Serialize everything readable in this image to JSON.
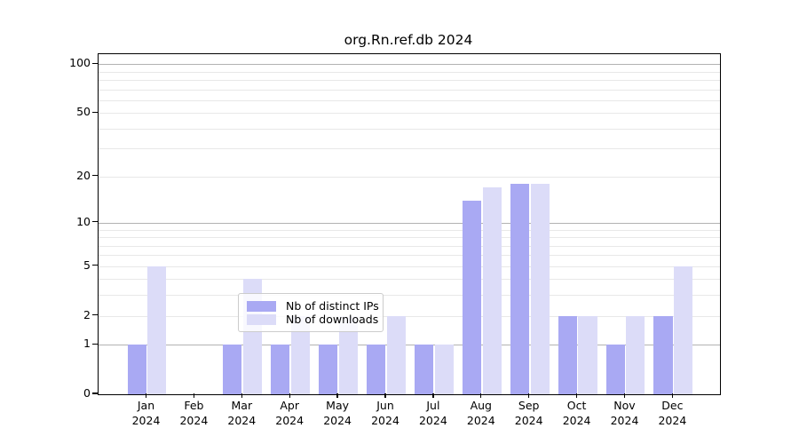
{
  "chart_data": {
    "type": "bar",
    "title": "org.Rn.ref.db 2024",
    "categories": [
      "Jan",
      "Feb",
      "Mar",
      "Apr",
      "May",
      "Jun",
      "Jul",
      "Aug",
      "Sep",
      "Oct",
      "Nov",
      "Dec"
    ],
    "category_year": "2024",
    "series": [
      {
        "name": "Nb of distinct IPs",
        "color": "#a9a9f3",
        "values": [
          1,
          0,
          1,
          1,
          1,
          1,
          1,
          14,
          18,
          2,
          1,
          2
        ]
      },
      {
        "name": "Nb of downloads",
        "color": "#dcdcf8",
        "values": [
          5,
          0,
          4,
          2,
          2,
          2,
          1,
          17,
          18,
          2,
          2,
          5
        ]
      }
    ],
    "yscale": "log1p",
    "ylim": [
      0,
      116
    ],
    "yticks": [
      0,
      1,
      2,
      5,
      10,
      20,
      50,
      100
    ],
    "ytick_labels": [
      "0",
      "1",
      "2",
      "5",
      "10",
      "20",
      "50",
      "100"
    ],
    "gridlines_major": [
      1,
      10,
      100
    ],
    "gridlines_minor": [
      2,
      3,
      4,
      5,
      6,
      7,
      8,
      9,
      20,
      30,
      40,
      50,
      60,
      70,
      80,
      90
    ],
    "grid": true,
    "legend_position": "lower center"
  },
  "colors": {
    "grid_major": "#b2b2b2",
    "grid_minor": "#e8e8e8",
    "spine": "#000000",
    "text": "#000000",
    "legend_border": "#cccccc"
  }
}
